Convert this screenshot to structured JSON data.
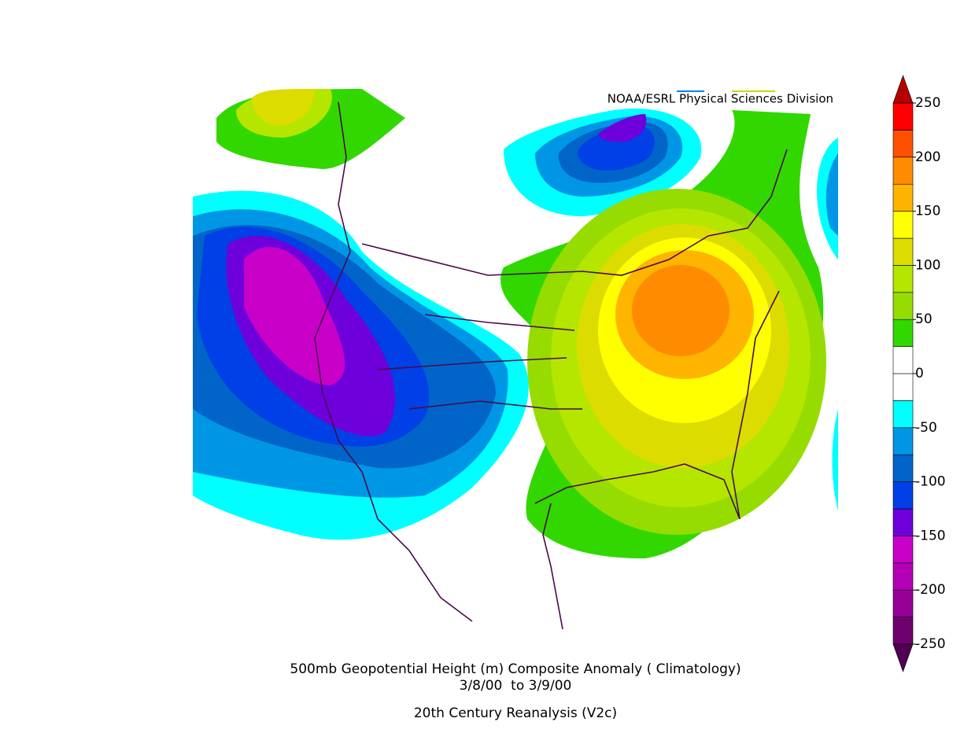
{
  "map": {
    "credit": "NOAA/ESRL Physical Sciences Division",
    "title": "500mb Geopotential Height (m) Composite Anomaly ( Climatology)",
    "dates": "3/8/00  to 3/9/00",
    "source": "20th Century Reanalysis (V2c)"
  },
  "colorbar": {
    "lim": [
      -250,
      250
    ],
    "levels": [
      -250,
      -225,
      -200,
      -175,
      -150,
      -125,
      -100,
      -75,
      -50,
      -25,
      0,
      25,
      50,
      75,
      100,
      125,
      150,
      175,
      200,
      225,
      250
    ],
    "colors": [
      "#6e006e",
      "#960096",
      "#b400b4",
      "#c800c8",
      "#6e00dc",
      "#0040e6",
      "#0064c8",
      "#0096e6",
      "#00ffff",
      "#ffffff",
      "#ffffff",
      "#32d700",
      "#96dc00",
      "#b4e600",
      "#dcdc00",
      "#ffff00",
      "#ffb400",
      "#ff8c00",
      "#ff5000",
      "#ff0000"
    ],
    "under_color": "#500050",
    "over_color": "#b40000",
    "ticks": [
      -250,
      -200,
      -150,
      -100,
      -50,
      0,
      50,
      100,
      150,
      200,
      250
    ]
  }
}
